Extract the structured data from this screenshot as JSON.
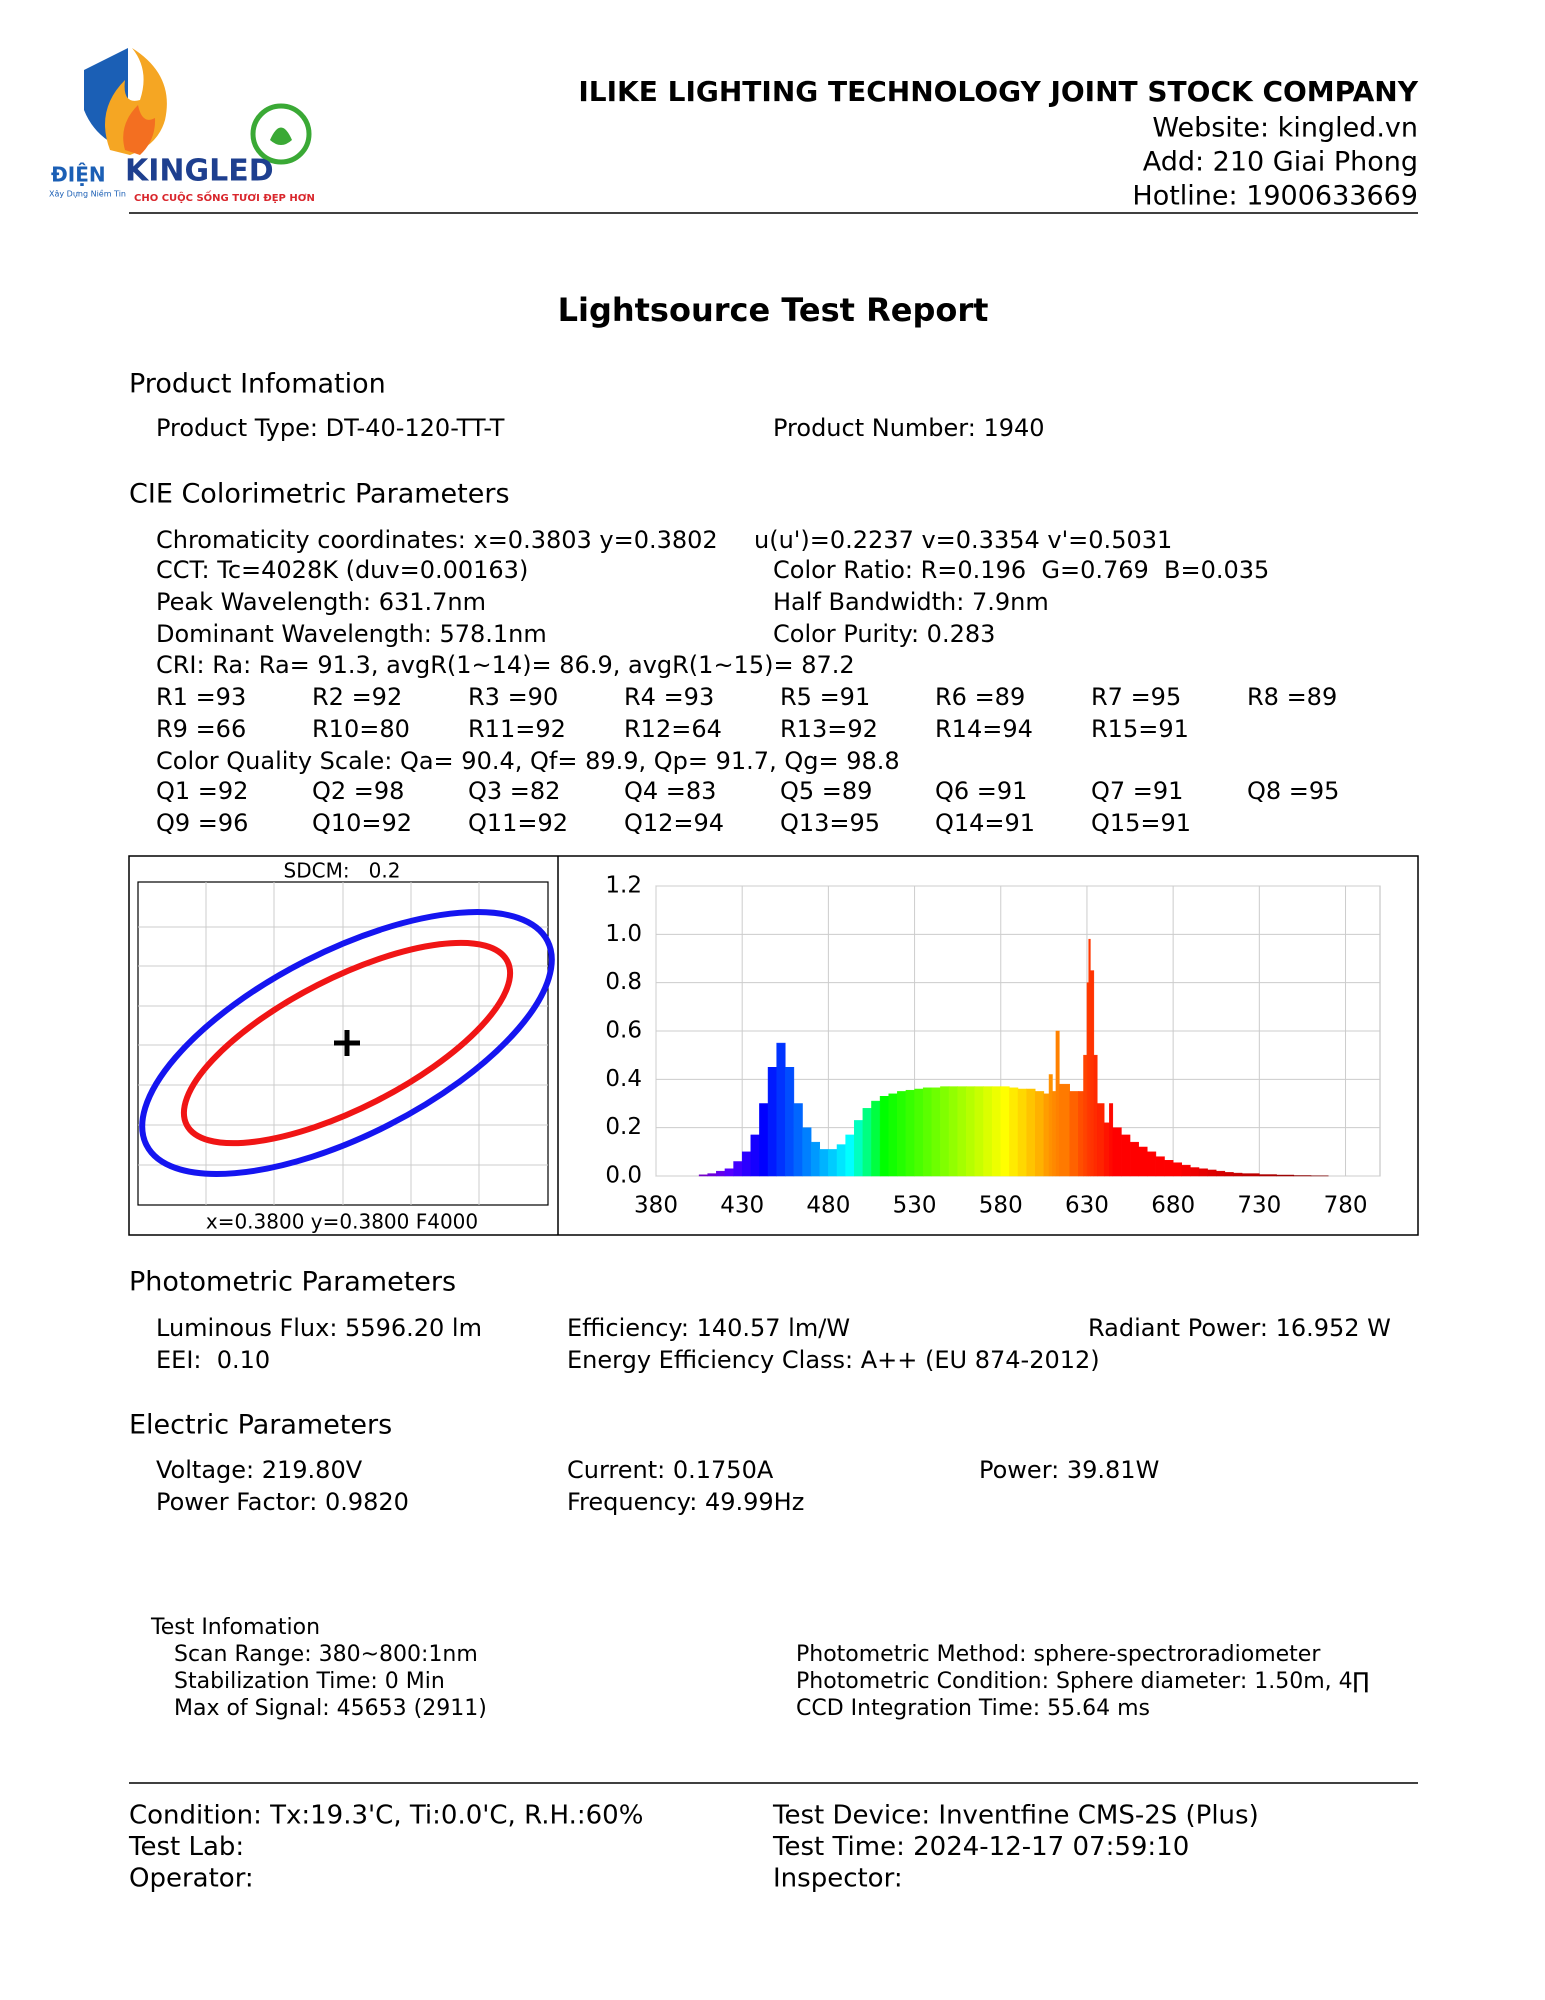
{
  "header": {
    "company": "ILIKE LIGHTING TECHNOLOGY JOINT STOCK COMPANY",
    "website": "Website: kingled.vn",
    "address": "Add: 210 Giai Phong",
    "hotline": "Hotline: 1900633669"
  },
  "logo": {
    "prefix": "ĐIỆN",
    "brand": "KINGLED",
    "tagline": "CHO CUỘC SỐNG TƯƠI ĐẸP HƠN",
    "slogan": "Xây Dựng Niềm Tin"
  },
  "title": "Lightsource Test Report",
  "product": {
    "heading": "Product Infomation",
    "type": "Product Type: DT-40-120-TT-T",
    "number": "Product Number: 1940"
  },
  "cie": {
    "heading": "CIE Colorimetric Parameters",
    "lines": [
      [
        "Chromaticity coordinates: x=0.3803 y=0.3802",
        "u(u')=0.2237 v=0.3354 v'=0.5031"
      ],
      [
        "CCT: Tc=4028K (duv=0.00163)",
        "Color Ratio: R=0.196  G=0.769  B=0.035"
      ],
      [
        "Peak Wavelength: 631.7nm",
        "Half Bandwidth: 7.9nm"
      ],
      [
        "Dominant Wavelength: 578.1nm",
        "Color Purity: 0.283"
      ]
    ],
    "cri": "CRI: Ra: Ra= 91.3, avgR(1~14)= 86.9, avgR(1~15)= 87.2",
    "r_values": [
      "R1 =93",
      "R2 =92",
      "R3 =90",
      "R4 =93",
      "R5 =91",
      "R6 =89",
      "R7 =95",
      "R8 =89",
      "R9 =66",
      "R10=80",
      "R11=92",
      "R12=64",
      "R13=92",
      "R14=94",
      "R15=91"
    ],
    "cqs": "Color Quality Scale: Qa= 90.4, Qf= 89.9, Qp= 91.7, Qg= 98.8",
    "q_values": [
      "Q1 =92",
      "Q2 =98",
      "Q3 =82",
      "Q4 =83",
      "Q5 =89",
      "Q6 =91",
      "Q7 =91",
      "Q8 =95",
      "Q9 =96",
      "Q10=92",
      "Q11=92",
      "Q12=94",
      "Q13=95",
      "Q14=91",
      "Q15=91"
    ]
  },
  "sdcm": {
    "label": "SDCM:   0.2",
    "reference": "x=0.3800 y=0.3800 F4000"
  },
  "chart_data": {
    "type": "bar",
    "x": [
      380,
      385,
      390,
      395,
      400,
      405,
      410,
      415,
      420,
      425,
      430,
      435,
      440,
      445,
      450,
      455,
      460,
      465,
      470,
      475,
      480,
      485,
      490,
      495,
      500,
      505,
      510,
      515,
      520,
      525,
      530,
      535,
      540,
      545,
      550,
      555,
      560,
      565,
      570,
      575,
      580,
      585,
      590,
      595,
      600,
      605,
      608,
      610,
      612,
      614,
      620,
      625,
      628,
      630,
      631,
      632,
      634,
      636,
      640,
      643,
      645,
      650,
      655,
      660,
      665,
      670,
      675,
      680,
      685,
      690,
      695,
      700,
      705,
      710,
      715,
      720,
      730,
      740,
      750,
      760,
      770,
      780
    ],
    "values": [
      0,
      0,
      0,
      0,
      0,
      0.005,
      0.01,
      0.02,
      0.03,
      0.06,
      0.1,
      0.17,
      0.3,
      0.45,
      0.55,
      0.45,
      0.3,
      0.2,
      0.14,
      0.11,
      0.11,
      0.13,
      0.17,
      0.23,
      0.28,
      0.31,
      0.33,
      0.34,
      0.35,
      0.355,
      0.36,
      0.365,
      0.365,
      0.37,
      0.37,
      0.37,
      0.37,
      0.37,
      0.37,
      0.37,
      0.37,
      0.365,
      0.36,
      0.36,
      0.35,
      0.34,
      0.42,
      0.35,
      0.6,
      0.38,
      0.35,
      0.35,
      0.5,
      0.8,
      0.98,
      0.85,
      0.5,
      0.3,
      0.22,
      0.3,
      0.2,
      0.17,
      0.14,
      0.12,
      0.1,
      0.08,
      0.065,
      0.055,
      0.045,
      0.035,
      0.03,
      0.025,
      0.02,
      0.015,
      0.012,
      0.01,
      0.006,
      0.004,
      0.002,
      0.001,
      0,
      0
    ],
    "xlim": [
      380,
      800
    ],
    "xticks": [
      380,
      430,
      480,
      530,
      580,
      630,
      680,
      730,
      780
    ],
    "ylim": [
      0,
      1.2
    ],
    "yticks": [
      {
        "value": 0,
        "label": "0.0"
      },
      0.2,
      0.4,
      0.6,
      0.8,
      {
        "value": 1,
        "label": "1.0"
      },
      1.2
    ],
    "grid": true,
    "color": "wavelength"
  },
  "photometric": {
    "heading": "Photometric Parameters",
    "rows": [
      [
        "Luminous Flux: 5596.20 lm",
        "Efficiency: 140.57 lm/W",
        "Radiant Power: 16.952 W"
      ],
      [
        "EEI:  0.10",
        "Energy Efficiency Class: A++ (EU 874-2012)"
      ]
    ]
  },
  "electric": {
    "heading": "Electric Parameters",
    "rows": [
      [
        "Voltage: 219.80V",
        "Current: 0.1750A",
        "Power: 39.81W"
      ],
      [
        "Power Factor: 0.9820",
        "Frequency: 49.99Hz"
      ]
    ]
  },
  "test_info": {
    "heading": "Test Infomation",
    "left": [
      "Scan Range: 380~800:1nm",
      "Stabilization Time: 0 Min",
      "Max of Signal: 45653 (2911)"
    ],
    "right": [
      "Photometric Method: sphere-spectroradiometer",
      "Photometric Condition: Sphere diameter: 1.50m, 4∏",
      "CCD Integration Time: 55.64 ms"
    ]
  },
  "footer": {
    "left": [
      "Condition: Tx:19.3'C, Ti:0.0'C, R.H.:60%",
      "Test Lab:",
      "Operator:"
    ],
    "right": [
      "Test Device: Inventfine CMS-2S (Plus)",
      "Test Time: 2024-12-17 07:59:10",
      "Inspector:"
    ]
  }
}
